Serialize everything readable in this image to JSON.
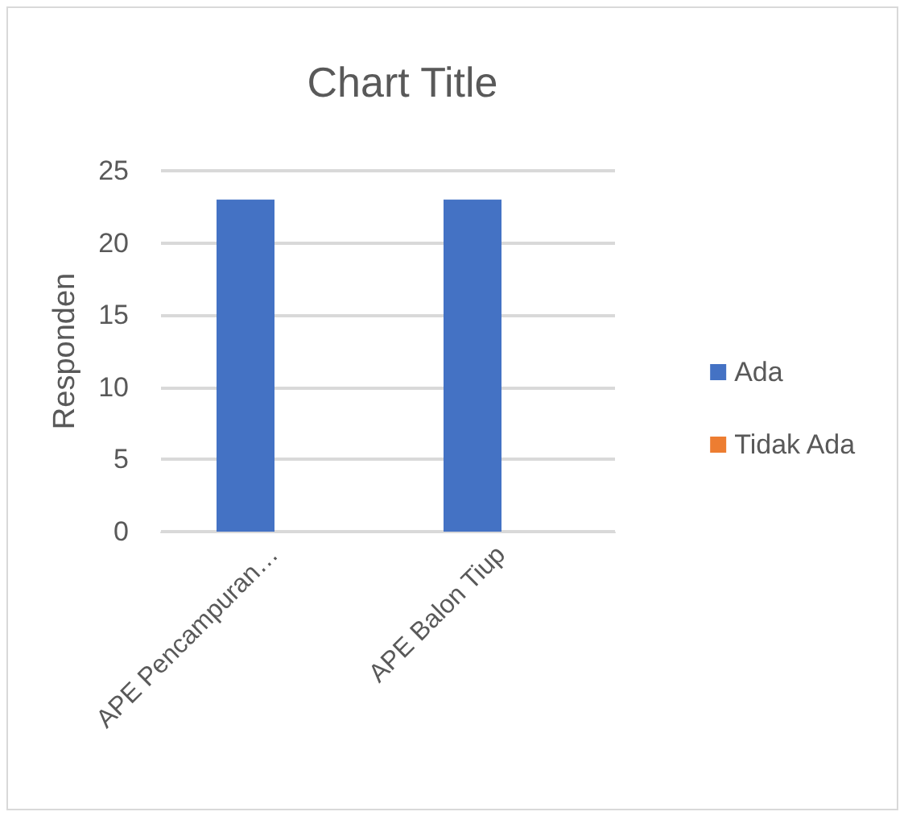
{
  "chart_data": {
    "type": "bar",
    "title": "Chart Title",
    "ylabel": "Responden",
    "categories": [
      "APE Pencampuran…",
      "APE Balon Tiup"
    ],
    "series": [
      {
        "name": "Ada",
        "color": "#4472c4",
        "values": [
          23,
          23
        ]
      },
      {
        "name": "Tidak Ada",
        "color": "#ed7d31",
        "values": [
          0,
          0
        ]
      }
    ],
    "ylim": [
      0,
      25
    ],
    "yticks": [
      0,
      5,
      10,
      15,
      20,
      25
    ],
    "grid": "y",
    "legend": "right"
  }
}
